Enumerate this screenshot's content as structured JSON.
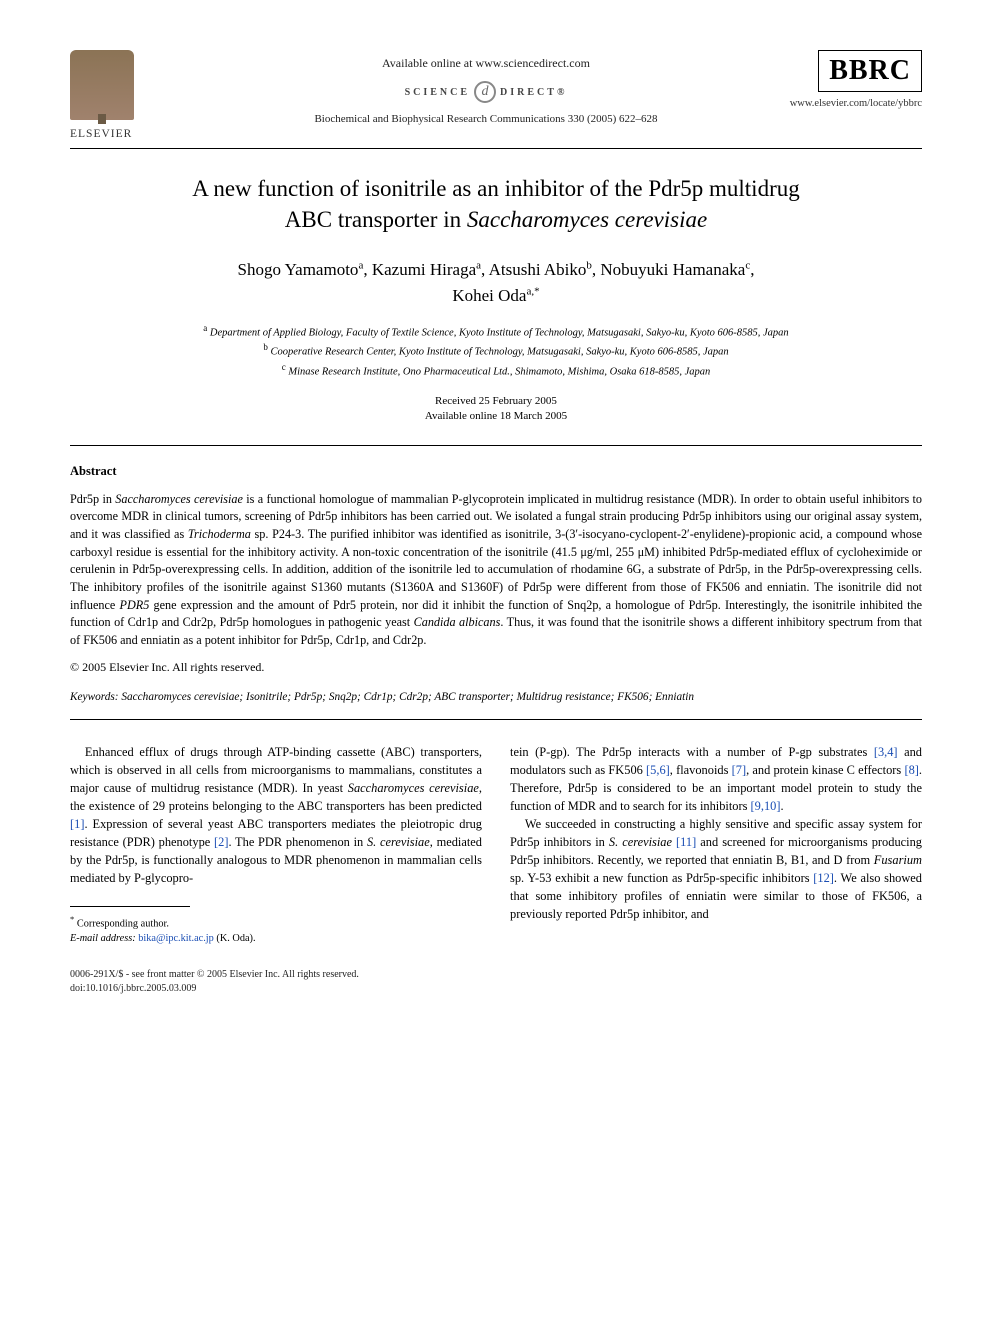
{
  "header": {
    "publisher_logo_text": "ELSEVIER",
    "available_line": "Available online at www.sciencedirect.com",
    "sd_left": "SCIENCE",
    "sd_right": "DIRECT®",
    "sd_glyph": "d",
    "citation": "Biochemical and Biophysical Research Communications 330 (2005) 622–628",
    "journal_logo": "BBRC",
    "locate": "www.elsevier.com/locate/ybbrc"
  },
  "title": {
    "line1": "A new function of isonitrile as an inhibitor of the Pdr5p multidrug",
    "line2_pre": "ABC transporter in ",
    "line2_ital": "Saccharomyces cerevisiae"
  },
  "authors": {
    "a1": "Shogo Yamamoto",
    "a1_sup": "a",
    "a2": "Kazumi Hiraga",
    "a2_sup": "a",
    "a3": "Atsushi Abiko",
    "a3_sup": "b",
    "a4": "Nobuyuki Hamanaka",
    "a4_sup": "c",
    "a5": "Kohei Oda",
    "a5_sup": "a,*"
  },
  "affiliations": {
    "a_sup": "a",
    "a_text": "Department of Applied Biology, Faculty of Textile Science, Kyoto Institute of Technology, Matsugasaki, Sakyo-ku, Kyoto 606-8585, Japan",
    "b_sup": "b",
    "b_text": "Cooperative Research Center, Kyoto Institute of Technology, Matsugasaki, Sakyo-ku, Kyoto 606-8585, Japan",
    "c_sup": "c",
    "c_text": "Minase Research Institute, Ono Pharmaceutical Ltd., Shimamoto, Mishima, Osaka 618-8585, Japan"
  },
  "dates": {
    "received": "Received 25 February 2005",
    "available": "Available online 18 March 2005"
  },
  "abstract": {
    "heading": "Abstract",
    "s1_pre": "Pdr5p in ",
    "s1_ital": "Saccharomyces cerevisiae",
    "s1_post": " is a functional homologue of mammalian P-glycoprotein implicated in multidrug resistance (MDR). In order to obtain useful inhibitors to overcome MDR in clinical tumors, screening of Pdr5p inhibitors has been carried out. We isolated a fungal strain producing Pdr5p inhibitors using our original assay system, and it was classified as ",
    "s2_ital": "Trichoderma",
    "s2_post": " sp. P24-3. The purified inhibitor was identified as isonitrile, 3-(3′-isocyano-cyclopent-2′-enylidene)-propionic acid, a compound whose carboxyl residue is essential for the inhibitory activity. A non-toxic concentration of the isonitrile (41.5 μg/ml, 255 μM) inhibited Pdr5p-mediated efflux of cycloheximide or cerulenin in Pdr5p-overexpressing cells. In addition, addition of the isonitrile led to accumulation of rhodamine 6G, a substrate of Pdr5p, in the Pdr5p-overexpressing cells. The inhibitory profiles of the isonitrile against S1360 mutants (S1360A and S1360F) of Pdr5p were different from those of FK506 and enniatin. The isonitrile did not influence ",
    "s3_ital": "PDR5",
    "s3_post": " gene expression and the amount of Pdr5 protein, nor did it inhibit the function of Snq2p, a homologue of Pdr5p. Interestingly, the isonitrile inhibited the function of Cdr1p and Cdr2p, Pdr5p homologues in pathogenic yeast ",
    "s4_ital": "Candida albicans",
    "s4_post": ". Thus, it was found that the isonitrile shows a different inhibitory spectrum from that of FK506 and enniatin as a potent inhibitor for Pdr5p, Cdr1p, and Cdr2p.",
    "copyright": "© 2005 Elsevier Inc. All rights reserved."
  },
  "keywords": {
    "label": "Keywords:",
    "text": " Saccharomyces cerevisiae; Isonitrile; Pdr5p; Snq2p; Cdr1p; Cdr2p; ABC transporter; Multidrug resistance; FK506; Enniatin"
  },
  "body": {
    "col1": {
      "p1_a": "Enhanced efflux of drugs through ATP-binding cassette (ABC) transporters, which is observed in all cells from microorganisms to mammalians, constitutes a major cause of multidrug resistance (MDR). In yeast ",
      "p1_ital1": "Saccharomyces cerevisiae",
      "p1_b": ", the existence of 29 proteins belonging to the ABC transporters has been predicted ",
      "p1_link1": "[1]",
      "p1_c": ". Expression of several yeast ABC transporters mediates the pleiotropic drug resistance (PDR) phenotype ",
      "p1_link2": "[2]",
      "p1_d": ". The PDR phenomenon in ",
      "p1_ital2": "S. cerevisiae",
      "p1_e": ", mediated by the Pdr5p, is functionally analogous to MDR phenomenon in mammalian cells mediated by P-glycopro-"
    },
    "col2": {
      "p1_a": "tein (P-gp). The Pdr5p interacts with a number of P-gp substrates ",
      "p1_link1": "[3,4]",
      "p1_b": " and modulators such as FK506 ",
      "p1_link2": "[5,6]",
      "p1_c": ", flavonoids ",
      "p1_link3": "[7]",
      "p1_d": ", and protein kinase C effectors ",
      "p1_link4": "[8]",
      "p1_e": ". Therefore, Pdr5p is considered to be an important model protein to study the function of MDR and to search for its inhibitors ",
      "p1_link5": "[9,10]",
      "p1_f": ".",
      "p2_a": "We succeeded in constructing a highly sensitive and specific assay system for Pdr5p inhibitors in ",
      "p2_ital1": "S. cerevisiae",
      "p2_b": " ",
      "p2_link1": "[11]",
      "p2_c": " and screened for microorganisms producing Pdr5p inhibitors. Recently, we reported that enniatin B, B1, and D from ",
      "p2_ital2": "Fusarium",
      "p2_d": " sp. Y-53 exhibit a new function as Pdr5p-specific inhibitors ",
      "p2_link2": "[12]",
      "p2_e": ". We also showed that some inhibitory profiles of enniatin were similar to those of FK506, a previously reported Pdr5p inhibitor, and"
    }
  },
  "footnote": {
    "corr_marker": "*",
    "corr_text": "Corresponding author.",
    "email_label": "E-mail address:",
    "email_link": "bika@ipc.kit.ac.jp",
    "email_post": " (K. Oda)."
  },
  "footer": {
    "line1": "0006-291X/$ - see front matter © 2005 Elsevier Inc. All rights reserved.",
    "line2": "doi:10.1016/j.bbrc.2005.03.009"
  },
  "colors": {
    "link": "#1a4db3",
    "text": "#000000",
    "bg": "#ffffff"
  },
  "typography": {
    "title_fontsize_pt": 17,
    "author_fontsize_pt": 13,
    "body_fontsize_pt": 9.3,
    "abstract_fontsize_pt": 9.2,
    "font_family": "Times-like serif"
  }
}
